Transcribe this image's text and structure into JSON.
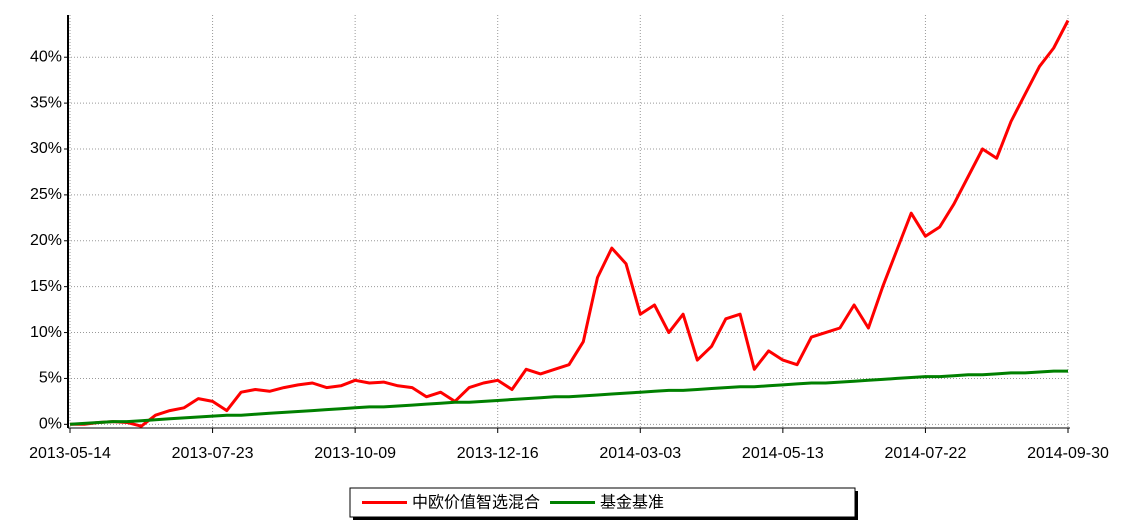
{
  "chart_data": {
    "type": "line",
    "categories": [
      "2013-05-14",
      null,
      null,
      null,
      null,
      null,
      null,
      null,
      null,
      null,
      "2013-07-23",
      null,
      null,
      null,
      null,
      null,
      null,
      null,
      null,
      null,
      "2013-10-09",
      null,
      null,
      null,
      null,
      null,
      null,
      null,
      null,
      null,
      "2013-12-16",
      null,
      null,
      null,
      null,
      null,
      null,
      null,
      null,
      null,
      "2014-03-03",
      null,
      null,
      null,
      null,
      null,
      null,
      null,
      null,
      null,
      "2014-05-13",
      null,
      null,
      null,
      null,
      null,
      null,
      null,
      null,
      null,
      "2014-07-22",
      null,
      null,
      null,
      null,
      null,
      null,
      null,
      null,
      null,
      "2014-09-30"
    ],
    "series": [
      {
        "name": "中欧价值智选混合",
        "color": "#ff0000",
        "values": [
          0,
          0,
          0.2,
          0.3,
          0.2,
          -0.2,
          1,
          1.5,
          1.8,
          2.8,
          2.5,
          1.5,
          3.5,
          3.8,
          3.6,
          4.0,
          4.3,
          4.5,
          4.0,
          4.2,
          4.8,
          4.5,
          4.6,
          4.2,
          4.0,
          3.0,
          3.5,
          2.5,
          4.0,
          4.5,
          4.8,
          3.8,
          6.0,
          5.5,
          6.0,
          6.5,
          9.0,
          16,
          19.2,
          17.5,
          12.0,
          13,
          10,
          12,
          7.0,
          8.5,
          11.5,
          12.0,
          6.0,
          8.0,
          7.0,
          6.5,
          9.5,
          10.0,
          10.5,
          13,
          10.5,
          15,
          19,
          23,
          20.5,
          21.5,
          24,
          27,
          30,
          29,
          33,
          36,
          39,
          41,
          44
        ]
      },
      {
        "name": "基金基准",
        "color": "#008000",
        "values": [
          0,
          0.1,
          0.2,
          0.3,
          0.3,
          0.4,
          0.5,
          0.6,
          0.7,
          0.8,
          0.9,
          1.0,
          1.0,
          1.1,
          1.2,
          1.3,
          1.4,
          1.5,
          1.6,
          1.7,
          1.8,
          1.9,
          1.9,
          2.0,
          2.1,
          2.2,
          2.3,
          2.4,
          2.4,
          2.5,
          2.6,
          2.7,
          2.8,
          2.9,
          3.0,
          3.0,
          3.1,
          3.2,
          3.3,
          3.4,
          3.5,
          3.6,
          3.7,
          3.7,
          3.8,
          3.9,
          4.0,
          4.1,
          4.1,
          4.2,
          4.3,
          4.4,
          4.5,
          4.5,
          4.6,
          4.7,
          4.8,
          4.9,
          5.0,
          5.1,
          5.2,
          5.2,
          5.3,
          5.4,
          5.4,
          5.5,
          5.6,
          5.6,
          5.7,
          5.8,
          5.8
        ]
      }
    ],
    "ylim": [
      -0.4,
      44.6
    ],
    "yticks": [
      {
        "value": 0,
        "label": "0%"
      },
      {
        "value": 5,
        "label": "5%"
      },
      {
        "value": 10,
        "label": "10%"
      },
      {
        "value": 15,
        "label": "15%"
      },
      {
        "value": 20,
        "label": "20%"
      },
      {
        "value": 25,
        "label": "25%"
      },
      {
        "value": 30,
        "label": "30%"
      },
      {
        "value": 35,
        "label": "35%"
      },
      {
        "value": 40,
        "label": "40%"
      }
    ],
    "grid": true,
    "legend": "bottom"
  }
}
